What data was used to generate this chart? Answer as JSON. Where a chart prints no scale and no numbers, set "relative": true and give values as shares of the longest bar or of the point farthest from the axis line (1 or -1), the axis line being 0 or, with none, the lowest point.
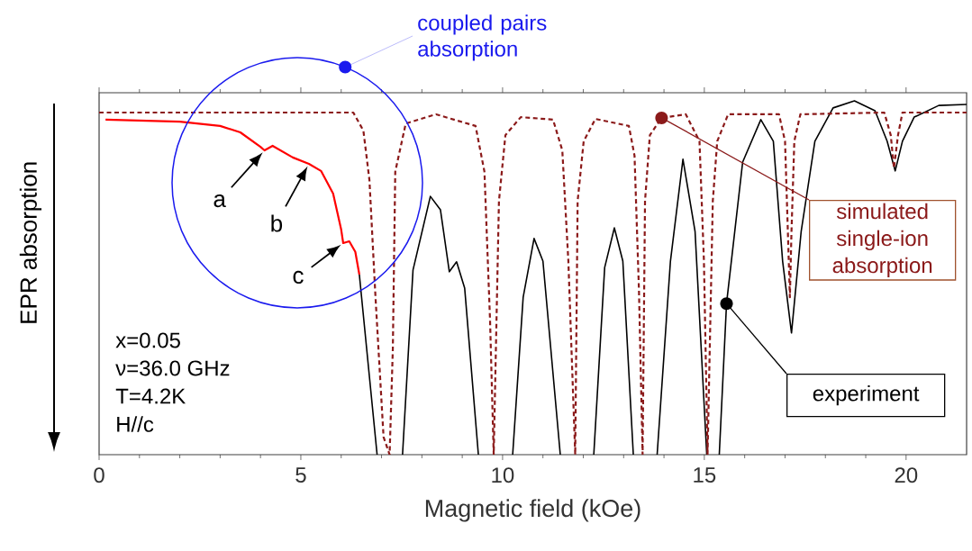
{
  "chart_data": {
    "type": "line",
    "xlabel": "Magnetic field (kOe)",
    "ylabel": "EPR absorption",
    "relative": true,
    "xlim": [
      0,
      21.5
    ],
    "xticks": [
      0,
      5,
      10,
      15,
      20
    ],
    "series": [
      {
        "color": "#ff0000",
        "x": [
          0.16,
          2,
          3,
          3.5,
          4.0,
          4.1,
          4.3,
          4.8,
          5.2,
          5.5,
          5.8,
          6.0,
          6.05,
          6.2,
          6.35,
          6.45
        ],
        "values": [
          0.947,
          0.941,
          0.929,
          0.911,
          0.87,
          0.86,
          0.873,
          0.84,
          0.822,
          0.802,
          0.738,
          0.636,
          0.598,
          0.603,
          0.573,
          0.509
        ]
      },
      {
        "name": "experiment",
        "color": "#000000",
        "x": [
          6.45,
          6.89,
          7.2,
          7.52,
          7.78,
          8.21,
          8.46,
          8.68,
          8.86,
          9.06,
          9.4,
          9.8,
          10.25,
          10.51,
          10.78,
          11.0,
          11.43,
          11.8,
          12.26,
          12.53,
          12.77,
          12.98,
          13.24,
          13.5,
          13.83,
          14.16,
          14.47,
          14.77,
          15.06,
          15.2,
          15.37,
          15.55,
          15.95,
          16.4,
          16.71,
          16.94,
          17.16,
          17.4,
          17.74,
          18.19,
          18.72,
          19.23,
          19.53,
          19.73,
          19.91,
          20.2,
          20.81,
          21.5
        ],
        "values": [
          0.509,
          0,
          null,
          0,
          0.522,
          0.73,
          0.692,
          0.517,
          0.545,
          0.471,
          0,
          null,
          0,
          0.445,
          0.611,
          0.547,
          0,
          null,
          0,
          0.529,
          0.641,
          0.547,
          0,
          null,
          0,
          0.547,
          0.835,
          0.631,
          0,
          null,
          0,
          0.427,
          0.827,
          0.947,
          0.886,
          0.547,
          0.344,
          0.631,
          0.886,
          0.98,
          1.0,
          0.972,
          0.886,
          0.802,
          0.886,
          0.954,
          0.987,
          0.99
        ]
      },
      {
        "name": "simulated single-ion absorption",
        "color": "#8b1a1a",
        "line_style": "dashed",
        "x": [
          0,
          6.3,
          6.55,
          6.7,
          6.85,
          7.05,
          7.2,
          7.28,
          7.34,
          7.6,
          8.35,
          9.33,
          9.55,
          9.69,
          9.78,
          9.91,
          10.07,
          10.45,
          11.25,
          11.48,
          11.63,
          11.8,
          11.86,
          12.01,
          12.3,
          13.13,
          13.27,
          13.38,
          13.47,
          13.53,
          13.65,
          13.94,
          14.54,
          14.88,
          14.99,
          15.08,
          15.21,
          15.32,
          15.59,
          16.85,
          17.0,
          17.07,
          17.12,
          17.16,
          17.23,
          17.38,
          19.46,
          19.62,
          19.7,
          19.8,
          19.91,
          21.5
        ],
        "values": [
          0.967,
          0.967,
          0.916,
          0.776,
          0.445,
          0.05,
          0,
          0.3,
          0.8,
          0.936,
          0.962,
          0.929,
          0.8,
          0.377,
          0,
          0.717,
          0.903,
          0.954,
          0.947,
          0.86,
          0.547,
          0,
          0.717,
          0.886,
          0.949,
          0.929,
          0.845,
          0.463,
          0,
          0.717,
          0.903,
          0.952,
          0.962,
          0.886,
          0.547,
          0,
          0.717,
          0.886,
          0.962,
          0.962,
          0.886,
          0.631,
          0.445,
          0.631,
          0.886,
          0.962,
          0.967,
          0.903,
          0.81,
          0.903,
          0.967,
          0.967
        ]
      }
    ],
    "annotations": [
      {
        "text": "a",
        "x": 4.1,
        "y": 0.86
      },
      {
        "text": "b",
        "x": 5.2,
        "y": 0.822
      },
      {
        "text": "c",
        "x": 6.05,
        "y": 0.598
      },
      "coupled pairs absorption",
      "x=0.05",
      "ν=36.0 GHz",
      "T=4.2K",
      "H//c"
    ]
  }
}
